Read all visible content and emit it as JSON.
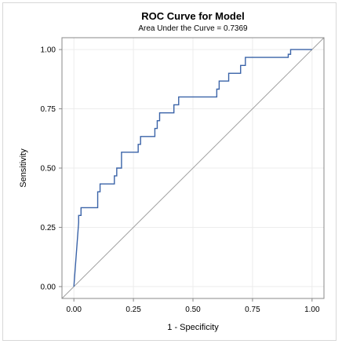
{
  "chart_data": {
    "type": "line",
    "title": "ROC Curve for Model",
    "subtitle": "Area Under the Curve = 0.7369",
    "xlabel": "1 - Specificity",
    "ylabel": "Sensitivity",
    "xlim": [
      -0.05,
      1.05
    ],
    "ylim": [
      -0.05,
      1.05
    ],
    "xticks": [
      "0.00",
      "0.25",
      "0.50",
      "0.75",
      "1.00"
    ],
    "yticks": [
      "0.00",
      "0.25",
      "0.50",
      "0.75",
      "1.00"
    ],
    "grid": true,
    "colors": {
      "roc": "#3a63a8",
      "diagonal": "#a0a0a0",
      "grid": "#ececec",
      "axis": "#888888"
    },
    "series": [
      {
        "x": [
          0,
          0.02,
          0.02,
          0.03,
          0.03,
          0.1,
          0.1,
          0.11,
          0.11,
          0.17,
          0.17,
          0.18,
          0.18,
          0.2,
          0.2,
          0.27,
          0.27,
          0.28,
          0.28,
          0.34,
          0.34,
          0.35,
          0.35,
          0.36,
          0.36,
          0.42,
          0.42,
          0.44,
          0.44,
          0.6,
          0.6,
          0.61,
          0.61,
          0.65,
          0.65,
          0.7,
          0.7,
          0.72,
          0.72,
          0.9,
          0.9,
          0.91,
          0.91,
          1.0
        ],
        "y": [
          0,
          0.27,
          0.3,
          0.3,
          0.333,
          0.333,
          0.4,
          0.4,
          0.433,
          0.433,
          0.467,
          0.467,
          0.5,
          0.5,
          0.567,
          0.567,
          0.6,
          0.6,
          0.633,
          0.633,
          0.667,
          0.667,
          0.7,
          0.7,
          0.733,
          0.733,
          0.767,
          0.767,
          0.8,
          0.8,
          0.833,
          0.833,
          0.867,
          0.867,
          0.9,
          0.9,
          0.933,
          0.933,
          0.967,
          0.967,
          0.98,
          0.98,
          1.0,
          1.0
        ]
      }
    ]
  }
}
